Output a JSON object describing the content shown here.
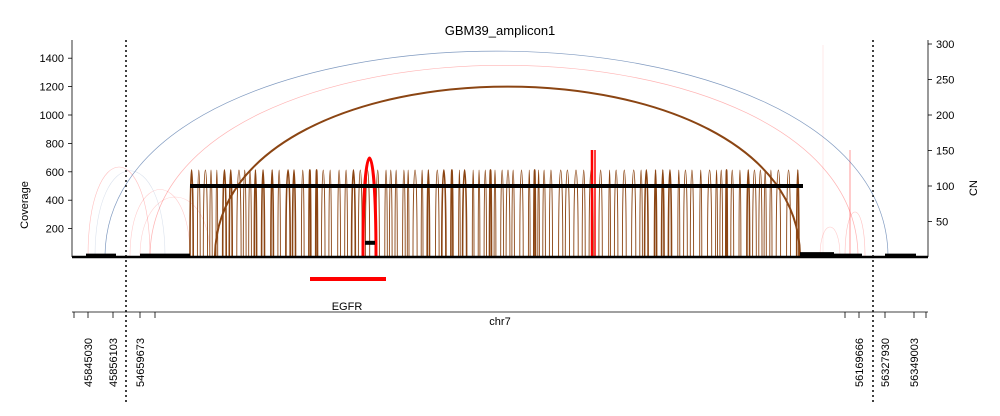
{
  "chart_data": {
    "type": "line",
    "title": "GBM39_amplicon1",
    "ylabel": "Coverage",
    "y2label": "CN",
    "xlabel": "chr7",
    "ylim": [
      0,
      1500
    ],
    "y2lim": [
      0,
      300
    ],
    "yticks": [
      "200",
      "400",
      "600",
      "800",
      "1000",
      "1200",
      "1400"
    ],
    "y2ticks": [
      "50",
      "100",
      "150",
      "200",
      "250",
      "300"
    ],
    "xticks": [
      "45845030",
      "45856103",
      "54659673",
      "56169666",
      "56327930",
      "56349003"
    ],
    "grid": false,
    "gene": {
      "name": "EGFR",
      "color": "#ff0000"
    },
    "colors": {
      "breakpoint": "#8B4513",
      "deletion": "#ff0000",
      "everted": "#4a6fa5",
      "segment": "#000000"
    },
    "segments": [
      {
        "region": "45845030-45856103",
        "cn": 2
      },
      {
        "region": "54659673-56169666",
        "cn": 100
      },
      {
        "region": "EGFR (inner)",
        "cn": 20
      },
      {
        "region": "56169666-56327930",
        "cn": 2
      },
      {
        "region": "56327930-56349003",
        "cn": 2
      }
    ],
    "discordant_arcs": [
      {
        "type": "foldback",
        "cn": 290,
        "color": "#4a6fa5"
      },
      {
        "type": "everted",
        "cn": 240,
        "color": "#8B4513"
      },
      {
        "type": "deletion",
        "cn": 155,
        "color": "#ff0000"
      }
    ]
  }
}
